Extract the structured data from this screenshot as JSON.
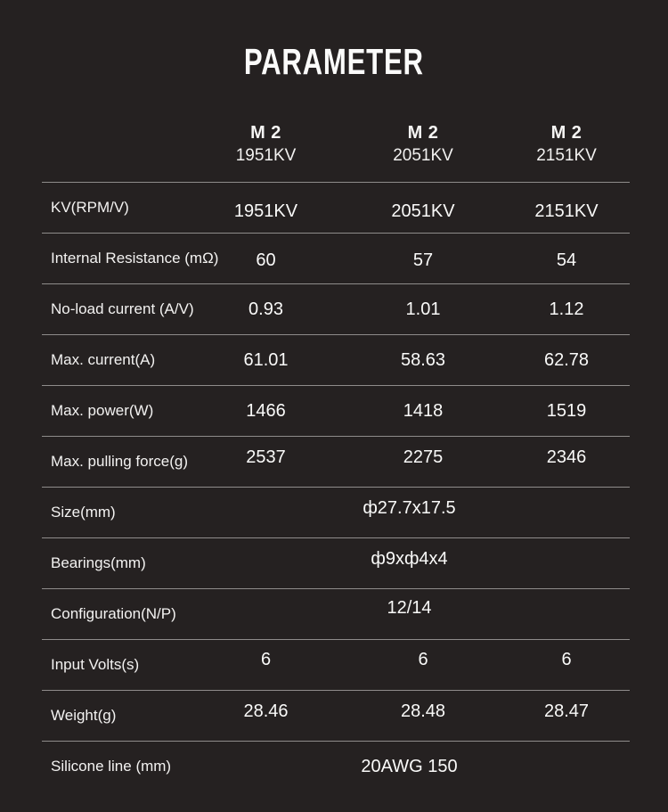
{
  "theme": {
    "background": "#252121",
    "text_color": "#f6f5f4",
    "divider_color": "#8f8c8b"
  },
  "title": "PARAMETER",
  "table": {
    "header_columns": [
      {
        "model": "M 2",
        "kv": "1951KV"
      },
      {
        "model": "M 2",
        "kv": "2051KV"
      },
      {
        "model": "M 2",
        "kv": "2151KV"
      }
    ],
    "rows": [
      {
        "label": "KV(RPM/V)",
        "values": [
          "1951KV",
          "2051KV",
          "2151KV"
        ]
      },
      {
        "label": "Internal Resistance (mΩ)",
        "values": [
          "60",
          "57",
          "54"
        ]
      },
      {
        "label": "No-load current (A/V)",
        "values": [
          "0.93",
          "1.01",
          "1.12"
        ]
      },
      {
        "label": "Max. current(A)",
        "values": [
          "61.01",
          "58.63",
          "62.78"
        ]
      },
      {
        "label": "Max. power(W)",
        "values": [
          "1466",
          "1418",
          "1519"
        ]
      },
      {
        "label": "Max. pulling force(g)",
        "values": [
          "2537",
          "2275",
          "2346"
        ]
      },
      {
        "label": "Size(mm)",
        "span": "ф27.7x17.5"
      },
      {
        "label": "Bearings(mm)",
        "span": "ф9xф4x4"
      },
      {
        "label": "Configuration(N/P)",
        "span": "12/14"
      },
      {
        "label": "Input Volts(s)",
        "values": [
          "6",
          "6",
          "6"
        ]
      },
      {
        "label": "Weight(g)",
        "values": [
          "28.46",
          "28.48",
          "28.47"
        ]
      },
      {
        "label": "Silicone line (mm)",
        "span": "20AWG 150"
      }
    ]
  }
}
